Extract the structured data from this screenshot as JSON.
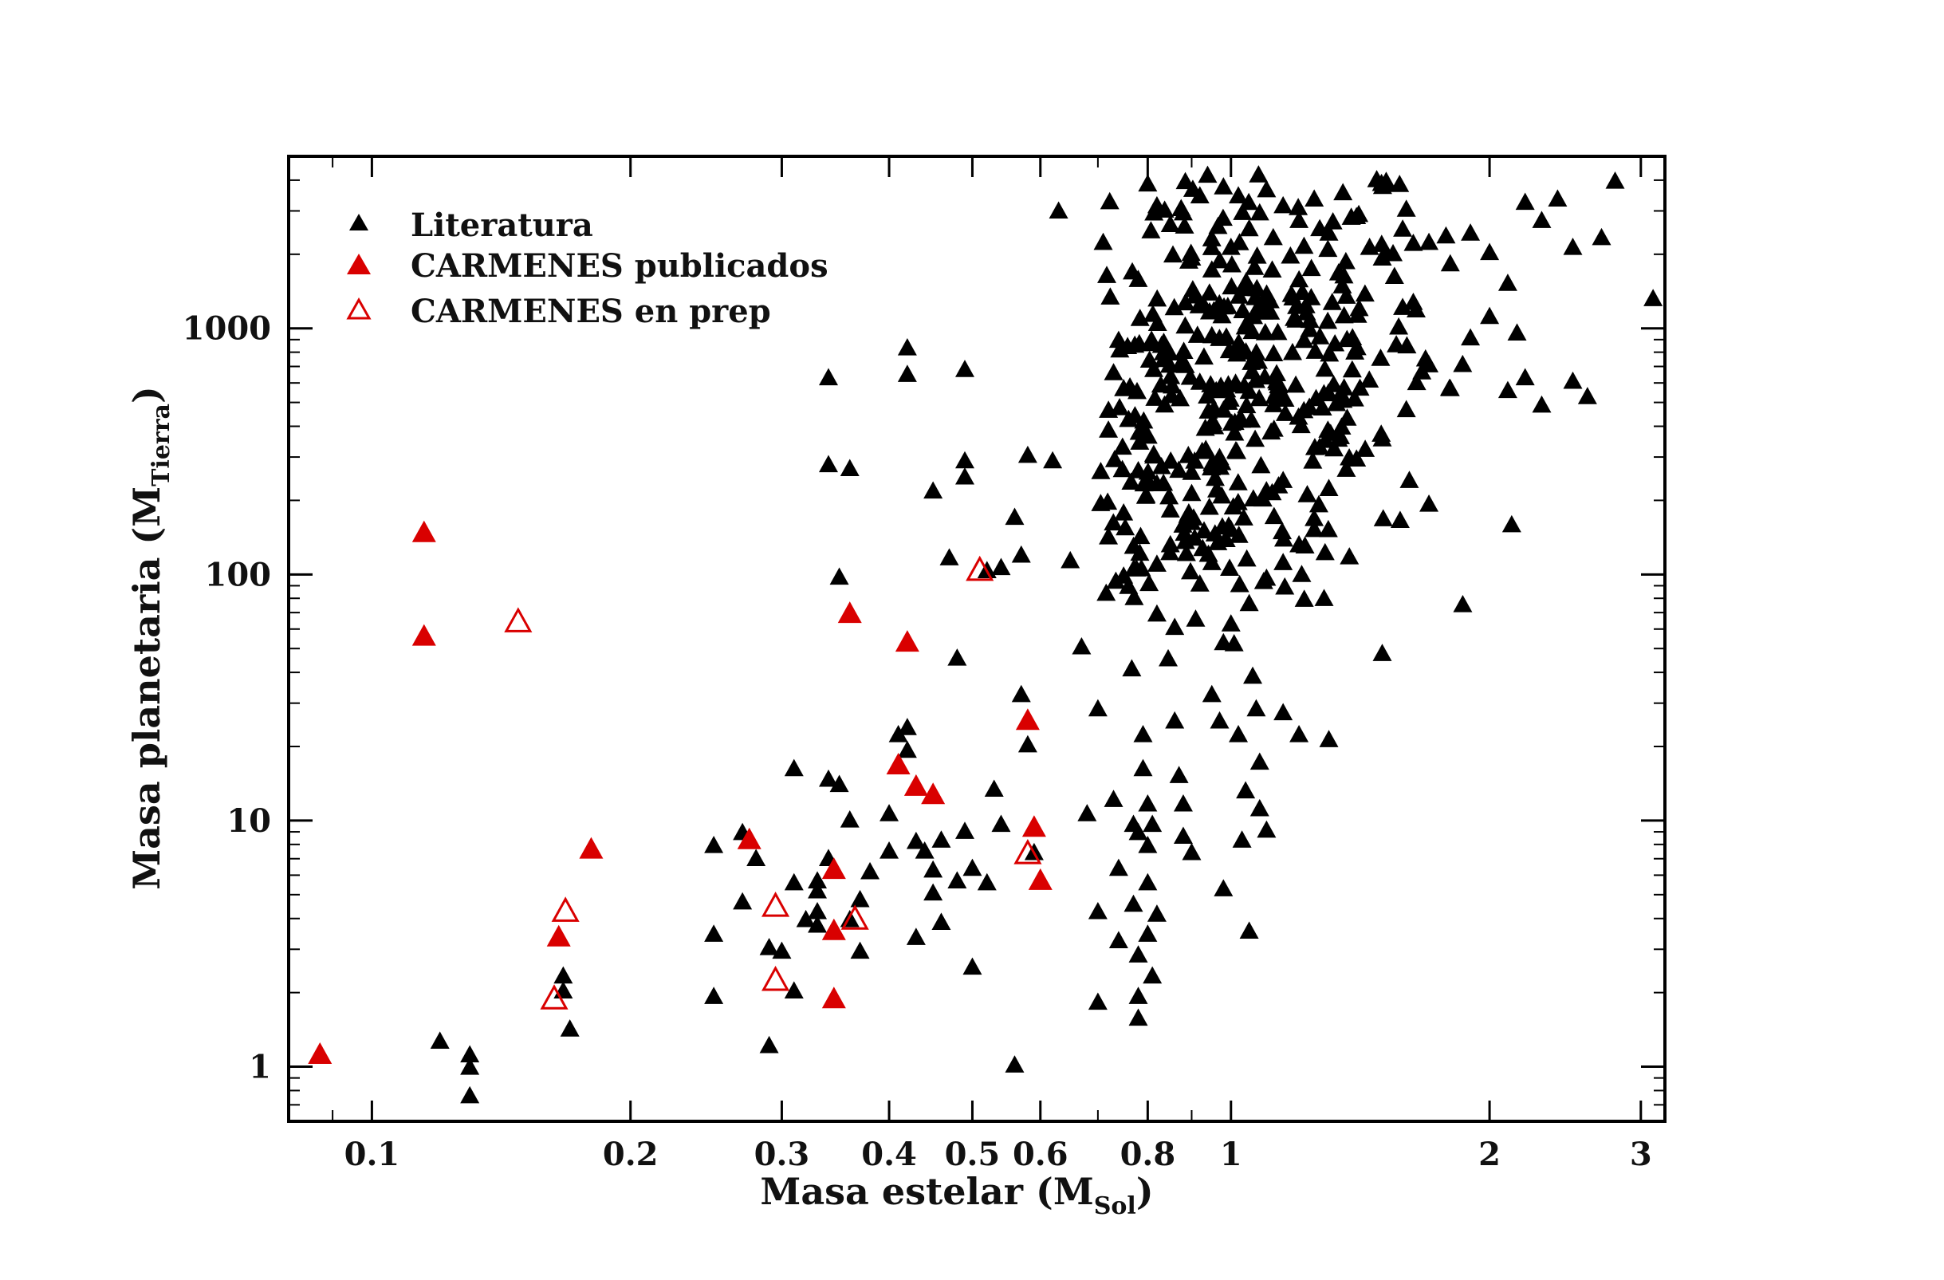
{
  "chart_data": {
    "type": "scatter",
    "title": "",
    "xlabel": "Masa estelar (M",
    "xlabel_sub": "Sol",
    "xlabel_end": ")",
    "ylabel": "Masa planetaria (M",
    "ylabel_sub": "Tierra",
    "ylabel_end": ")",
    "xscale": "log",
    "yscale": "log",
    "xlim": [
      0.08,
      3.2
    ],
    "ylim": [
      0.6,
      5000
    ],
    "grid": false,
    "legend_position": "top-left",
    "x_ticks": [
      {
        "value": 0.1,
        "label": "0.1"
      },
      {
        "value": 0.2,
        "label": "0.2"
      },
      {
        "value": 0.3,
        "label": "0.3"
      },
      {
        "value": 0.4,
        "label": "0.4"
      },
      {
        "value": 0.5,
        "label": "0.5"
      },
      {
        "value": 0.6,
        "label": "0.6"
      },
      {
        "value": 0.8,
        "label": "0.8"
      },
      {
        "value": 1,
        "label": "1"
      },
      {
        "value": 2,
        "label": "2"
      },
      {
        "value": 3,
        "label": "3"
      }
    ],
    "y_ticks": [
      {
        "value": 1,
        "label": "1"
      },
      {
        "value": 10,
        "label": "10"
      },
      {
        "value": 100,
        "label": "100"
      },
      {
        "value": 1000,
        "label": "1000"
      }
    ],
    "series": [
      {
        "name": "Literatura",
        "marker": "triangle-filled",
        "color": "#000000",
        "points": [
          [
            0.12,
            1.25
          ],
          [
            0.13,
            1.1
          ],
          [
            0.13,
            0.98
          ],
          [
            0.13,
            0.75
          ],
          [
            0.167,
            2.3
          ],
          [
            0.167,
            2.0
          ],
          [
            0.17,
            1.4
          ],
          [
            0.25,
            1.9
          ],
          [
            0.25,
            3.4
          ],
          [
            0.25,
            7.8
          ],
          [
            0.27,
            8.8
          ],
          [
            0.27,
            4.6
          ],
          [
            0.28,
            6.9
          ],
          [
            0.29,
            1.2
          ],
          [
            0.29,
            3.0
          ],
          [
            0.3,
            2.9
          ],
          [
            0.31,
            2.0
          ],
          [
            0.31,
            16
          ],
          [
            0.31,
            5.5
          ],
          [
            0.32,
            3.9
          ],
          [
            0.33,
            4.2
          ],
          [
            0.33,
            5.1
          ],
          [
            0.33,
            5.6
          ],
          [
            0.33,
            3.7
          ],
          [
            0.34,
            14.5
          ],
          [
            0.34,
            6.9
          ],
          [
            0.35,
            96
          ],
          [
            0.35,
            13.8
          ],
          [
            0.36,
            9.9
          ],
          [
            0.36,
            3.9
          ],
          [
            0.37,
            2.9
          ],
          [
            0.37,
            4.7
          ],
          [
            0.38,
            6.1
          ],
          [
            0.4,
            10.5
          ],
          [
            0.4,
            7.4
          ],
          [
            0.41,
            22
          ],
          [
            0.42,
            19
          ],
          [
            0.42,
            23.5
          ],
          [
            0.43,
            8.1
          ],
          [
            0.43,
            3.3
          ],
          [
            0.44,
            7.4
          ],
          [
            0.45,
            6.2
          ],
          [
            0.45,
            5.0
          ],
          [
            0.46,
            8.2
          ],
          [
            0.46,
            3.8
          ],
          [
            0.48,
            5.6
          ],
          [
            0.49,
            8.9
          ],
          [
            0.5,
            2.5
          ],
          [
            0.5,
            6.3
          ],
          [
            0.52,
            5.5
          ],
          [
            0.53,
            13.2
          ],
          [
            0.54,
            9.5
          ],
          [
            0.56,
            1.0
          ],
          [
            0.57,
            32
          ],
          [
            0.58,
            20
          ],
          [
            0.59,
            7.3
          ],
          [
            0.34,
            620
          ],
          [
            0.34,
            275
          ],
          [
            0.36,
            265
          ],
          [
            0.42,
            820
          ],
          [
            0.42,
            640
          ],
          [
            0.45,
            215
          ],
          [
            0.47,
            115
          ],
          [
            0.48,
            45
          ],
          [
            0.49,
            670
          ],
          [
            0.49,
            285
          ],
          [
            0.49,
            245
          ],
          [
            0.52,
            102
          ],
          [
            0.54,
            105
          ],
          [
            0.56,
            168
          ],
          [
            0.57,
            118
          ],
          [
            0.58,
            300
          ],
          [
            0.62,
            285
          ],
          [
            0.63,
            2950
          ],
          [
            0.65,
            112
          ],
          [
            0.67,
            50
          ],
          [
            0.68,
            10.5
          ],
          [
            0.7,
            28
          ],
          [
            0.7,
            4.2
          ],
          [
            0.7,
            1.8
          ],
          [
            0.71,
            2200
          ],
          [
            0.72,
            140
          ],
          [
            0.73,
            12
          ],
          [
            0.74,
            6.3
          ],
          [
            0.74,
            3.2
          ],
          [
            0.75,
            175
          ],
          [
            0.75,
            97
          ],
          [
            0.76,
            88
          ],
          [
            0.77,
            9.5
          ],
          [
            0.77,
            4.5
          ],
          [
            0.78,
            8.8
          ],
          [
            0.78,
            2.8
          ],
          [
            0.78,
            1.9
          ],
          [
            0.78,
            1.55
          ],
          [
            0.79,
            22
          ],
          [
            0.79,
            16
          ],
          [
            0.8,
            11.5
          ],
          [
            0.8,
            7.8
          ],
          [
            0.8,
            5.5
          ],
          [
            0.8,
            3.4
          ],
          [
            0.81,
            9.5
          ],
          [
            0.81,
            2.3
          ],
          [
            0.82,
            68
          ],
          [
            0.82,
            4.1
          ],
          [
            0.83,
            270
          ],
          [
            0.85,
            130
          ],
          [
            0.86,
            60
          ],
          [
            0.86,
            25
          ],
          [
            0.87,
            15
          ],
          [
            0.88,
            11.5
          ],
          [
            0.88,
            8.5
          ],
          [
            0.9,
            210
          ],
          [
            0.9,
            7.3
          ],
          [
            0.92,
            90
          ],
          [
            0.95,
            32
          ],
          [
            0.97,
            25
          ],
          [
            0.98,
            52
          ],
          [
            0.98,
            5.2
          ],
          [
            1.0,
            150
          ],
          [
            1.02,
            22
          ],
          [
            1.03,
            8.2
          ],
          [
            1.04,
            13
          ],
          [
            1.05,
            3.5
          ],
          [
            1.06,
            38
          ],
          [
            1.07,
            28
          ],
          [
            1.08,
            17
          ],
          [
            1.08,
            11
          ],
          [
            1.1,
            9
          ],
          [
            1.15,
            27
          ],
          [
            1.2,
            22
          ],
          [
            1.3,
            21
          ],
          [
            1.5,
            47
          ],
          [
            0.8,
            3800
          ],
          [
            0.82,
            3100
          ],
          [
            0.85,
            2600
          ],
          [
            0.88,
            2900
          ],
          [
            0.9,
            1900
          ],
          [
            0.92,
            3400
          ],
          [
            0.95,
            1700
          ],
          [
            0.98,
            3700
          ],
          [
            1.0,
            2100
          ],
          [
            1.02,
            3400
          ],
          [
            1.05,
            2500
          ],
          [
            1.08,
            2900
          ],
          [
            1.1,
            3600
          ],
          [
            1.12,
            2300
          ],
          [
            1.15,
            3100
          ],
          [
            1.2,
            2700
          ],
          [
            1.25,
            3300
          ],
          [
            1.3,
            2400
          ],
          [
            1.35,
            3500
          ],
          [
            1.4,
            2800
          ],
          [
            1.45,
            2100
          ],
          [
            1.5,
            1900
          ],
          [
            1.55,
            1600
          ],
          [
            1.6,
            3000
          ],
          [
            1.7,
            2200
          ],
          [
            1.8,
            1800
          ],
          [
            1.9,
            2400
          ],
          [
            2.0,
            2000
          ],
          [
            2.1,
            1500
          ],
          [
            2.2,
            3200
          ],
          [
            2.3,
            2700
          ],
          [
            2.4,
            3300
          ],
          [
            2.5,
            2100
          ],
          [
            2.7,
            2300
          ],
          [
            2.8,
            3900
          ],
          [
            3.1,
            1300
          ],
          [
            1.9,
            900
          ],
          [
            2.0,
            1100
          ],
          [
            2.1,
            550
          ],
          [
            2.2,
            620
          ],
          [
            2.3,
            480
          ],
          [
            2.5,
            600
          ],
          [
            2.6,
            520
          ],
          [
            1.8,
            560
          ],
          [
            1.7,
            700
          ],
          [
            1.6,
            460
          ],
          [
            1.5,
            350
          ],
          [
            1.4,
            290
          ],
          [
            1.3,
            220
          ],
          [
            1.25,
            150
          ],
          [
            1.2,
            130
          ],
          [
            1.15,
            110
          ],
          [
            1.1,
            95
          ],
          [
            1.05,
            75
          ],
          [
            1.0,
            62
          ],
          [
            0.95,
            110
          ],
          [
            0.9,
            160
          ],
          [
            0.85,
            180
          ],
          [
            0.82,
            230
          ],
          [
            0.78,
            260
          ],
          [
            0.76,
            420
          ],
          [
            0.75,
            560
          ],
          [
            0.74,
            880
          ],
          [
            0.73,
            650
          ],
          [
            0.72,
            380
          ],
          [
            1.7,
            190
          ]
        ],
        "cluster": {
          "x_center": 1.0,
          "y_center": 500,
          "x_spread_dex": 0.12,
          "y_spread_dex": 0.45,
          "count": 420
        }
      },
      {
        "name": "CARMENES publicados",
        "marker": "triangle-filled",
        "color": "#d90000",
        "points": [
          [
            0.087,
            1.1
          ],
          [
            0.115,
            145
          ],
          [
            0.115,
            55
          ],
          [
            0.165,
            3.3
          ],
          [
            0.18,
            7.5
          ],
          [
            0.275,
            8.2
          ],
          [
            0.345,
            6.2
          ],
          [
            0.345,
            3.5
          ],
          [
            0.345,
            1.85
          ],
          [
            0.36,
            68
          ],
          [
            0.41,
            16.5
          ],
          [
            0.42,
            52
          ],
          [
            0.43,
            13.5
          ],
          [
            0.45,
            12.5
          ],
          [
            0.58,
            25
          ],
          [
            0.59,
            9.2
          ],
          [
            0.6,
            5.6
          ]
        ]
      },
      {
        "name": "CARMENES en prep",
        "marker": "triangle-open",
        "color": "#d90000",
        "points": [
          [
            0.148,
            63
          ],
          [
            0.168,
            4.2
          ],
          [
            0.163,
            1.85
          ],
          [
            0.295,
            4.4
          ],
          [
            0.295,
            2.2
          ],
          [
            0.365,
            3.9
          ],
          [
            0.51,
            102
          ],
          [
            0.58,
            7.2
          ]
        ]
      }
    ]
  }
}
